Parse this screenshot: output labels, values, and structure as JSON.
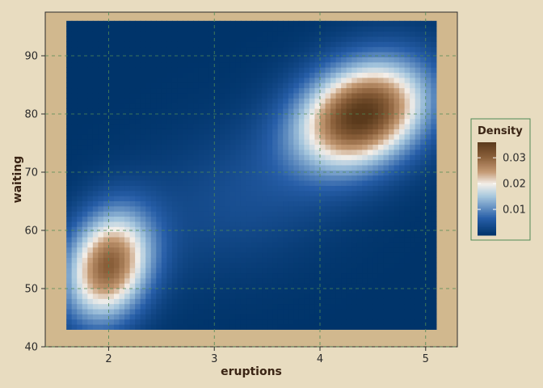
{
  "chart_data": {
    "type": "heatmap",
    "title": "",
    "xlabel": "eruptions",
    "ylabel": "waiting",
    "x_range": [
      1.6,
      5.1
    ],
    "y_range": [
      43,
      96
    ],
    "xlim": [
      1.4,
      5.3
    ],
    "ylim": [
      40,
      97.5
    ],
    "x_ticks": [
      2,
      3,
      4,
      5
    ],
    "y_ticks": [
      40,
      50,
      60,
      70,
      80,
      90
    ],
    "x_tick_labels": [
      "2",
      "3",
      "4",
      "5"
    ],
    "y_tick_labels": [
      "40",
      "50",
      "60",
      "70",
      "80",
      "90"
    ],
    "grid": true,
    "legend": {
      "title": "Density",
      "placement": "right",
      "breaks": [
        0.01,
        0.02,
        0.03
      ],
      "labels": [
        "0.01",
        "0.02",
        "0.03"
      ],
      "range": [
        0.0,
        0.036
      ]
    },
    "density_modes": [
      {
        "eruptions": 2.0,
        "waiting": 54,
        "peak_density": 0.03
      },
      {
        "eruptions": 4.4,
        "waiting": 80,
        "peak_density": 0.036
      }
    ],
    "color_scale": [
      "#00346a",
      "#275ea8",
      "#a8c8de",
      "#f4efe9",
      "#c49a74",
      "#8a5f3a",
      "#5a3a1c"
    ]
  },
  "colors": {
    "background": "#e8dcc0",
    "panel": "#d1b88e",
    "grid": "#4f8a56",
    "legend_border": "#4f8a56"
  }
}
